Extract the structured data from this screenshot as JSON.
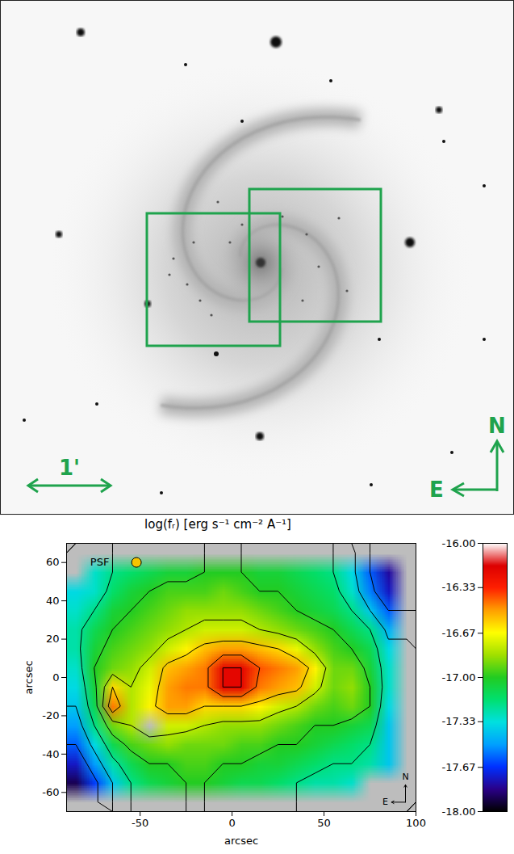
{
  "chart_data": [
    {
      "type": "image",
      "scale_bar_label": "1'",
      "compass": {
        "north": "N",
        "east": "E"
      }
    },
    {
      "type": "heatmap",
      "title": "log(fᵣ) [erg s⁻¹ cm⁻² A⁻¹]",
      "x_label": "arcsec",
      "y_label": "arcsec",
      "xlim": [
        -90,
        100
      ],
      "ylim": [
        -70,
        70
      ],
      "xticks": [
        -50,
        0,
        50,
        100
      ],
      "yticks": [
        -60,
        -40,
        -20,
        0,
        20,
        40,
        60
      ],
      "psf_label": "PSF",
      "compass": {
        "north": "N",
        "east": "E"
      },
      "cells": {
        "x": [
          -85,
          -75,
          -65,
          -55,
          -45,
          -35,
          -25,
          -15,
          -5,
          5,
          15,
          25,
          35,
          45,
          55,
          65,
          75,
          85,
          95
        ],
        "y": [
          65,
          55,
          45,
          35,
          25,
          15,
          5,
          -5,
          -15,
          -25,
          -35,
          -45,
          -55,
          -65
        ],
        "values": [
          [
            null,
            null,
            null,
            null,
            null,
            null,
            null,
            null,
            null,
            null,
            null,
            null,
            null,
            null,
            null,
            null,
            null,
            null,
            null
          ],
          [
            null,
            -17.3,
            -17.2,
            -17.15,
            -17.1,
            -17.05,
            -17.05,
            -17.0,
            -17.0,
            -17.0,
            -17.05,
            -17.05,
            -17.1,
            -17.15,
            -17.2,
            -17.35,
            -17.6,
            -17.8,
            null
          ],
          [
            -17.35,
            -17.3,
            -17.15,
            -17.05,
            -17.0,
            -16.95,
            -16.95,
            -16.95,
            -16.9,
            -16.95,
            -17.0,
            -17.0,
            -17.05,
            -17.1,
            -17.15,
            -17.3,
            -17.55,
            -17.75,
            null
          ],
          [
            -17.3,
            -17.2,
            -17.05,
            -17.0,
            -16.95,
            -16.9,
            -16.85,
            -16.85,
            -16.85,
            -16.85,
            -16.9,
            -16.95,
            -17.0,
            -17.05,
            -17.1,
            -17.2,
            -17.4,
            -17.6,
            null
          ],
          [
            -17.25,
            -17.1,
            -17.0,
            -16.95,
            -16.9,
            -16.85,
            -16.8,
            -16.75,
            -16.75,
            -16.75,
            -16.8,
            -16.85,
            -16.9,
            -16.95,
            -17.0,
            -17.1,
            -17.2,
            -17.45,
            null
          ],
          [
            -17.25,
            -17.05,
            -16.95,
            -16.9,
            -16.85,
            -16.75,
            -16.65,
            -16.55,
            -16.5,
            -16.5,
            -16.55,
            -16.6,
            -16.7,
            -16.85,
            -16.95,
            -17.0,
            -17.1,
            -17.35,
            null
          ],
          [
            -17.3,
            -17.0,
            -16.9,
            -16.85,
            -16.75,
            -16.55,
            -16.5,
            -16.45,
            -16.2,
            -16.2,
            -16.4,
            -16.45,
            -16.5,
            -16.65,
            -16.9,
            -16.9,
            -17.05,
            -17.3,
            null
          ],
          [
            -17.35,
            -17.05,
            -16.6,
            -16.8,
            -16.7,
            -16.5,
            -16.45,
            -16.45,
            -16.2,
            -16.2,
            -16.45,
            -16.5,
            -16.55,
            -16.75,
            -16.9,
            -16.85,
            -17.0,
            -17.3,
            null
          ],
          [
            -17.4,
            -17.1,
            -16.45,
            -16.8,
            -16.65,
            -16.5,
            -16.5,
            -16.6,
            -16.6,
            -16.6,
            -16.65,
            -16.75,
            -16.8,
            -16.9,
            -16.95,
            -16.9,
            -17.0,
            -17.35,
            null
          ],
          [
            -17.5,
            -17.2,
            -16.9,
            -16.8,
            null,
            -16.75,
            -16.75,
            -16.8,
            -16.85,
            -16.85,
            -16.85,
            -16.9,
            -16.95,
            -17.0,
            -17.0,
            -17.05,
            -17.1,
            -17.4,
            null
          ],
          [
            -17.6,
            -17.35,
            -17.1,
            -16.95,
            -16.9,
            -16.85,
            -16.9,
            -16.9,
            -16.9,
            -16.95,
            -16.95,
            -17.0,
            -17.0,
            -17.05,
            -17.1,
            -17.15,
            -17.2,
            -17.4,
            null
          ],
          [
            -17.75,
            -17.5,
            -17.25,
            -17.1,
            -17.0,
            -17.0,
            -16.95,
            -16.95,
            -17.0,
            -17.0,
            -17.05,
            -17.05,
            -17.1,
            -17.15,
            -17.2,
            -17.2,
            -17.25,
            -17.4,
            null
          ],
          [
            -17.9,
            -17.65,
            -17.4,
            -17.2,
            -17.1,
            -17.05,
            -17.0,
            -17.0,
            -17.05,
            -17.1,
            -17.1,
            -17.15,
            -17.2,
            -17.25,
            -17.25,
            -17.3,
            null,
            null,
            null
          ],
          [
            null,
            null,
            null,
            null,
            null,
            null,
            null,
            null,
            null,
            null,
            null,
            null,
            null,
            null,
            null,
            null,
            null,
            null,
            null
          ]
        ]
      },
      "contour_levels": [
        -17.6,
        -17.4,
        -17.2,
        -17.0,
        -16.8,
        -16.6,
        -16.4,
        -16.2
      ],
      "colorbar": {
        "range": [
          -18,
          -16
        ],
        "ticks": [
          {
            "value": -16,
            "label": "-16.00"
          },
          {
            "value": -16.33,
            "label": "-16.33"
          },
          {
            "value": -16.67,
            "label": "-16.67"
          },
          {
            "value": -17,
            "label": "-17.00"
          },
          {
            "value": -17.33,
            "label": "-17.33"
          },
          {
            "value": -17.67,
            "label": "-17.67"
          },
          {
            "value": -18,
            "label": "-18.00"
          }
        ],
        "colors": [
          "#000000",
          "#2a0088",
          "#0030ff",
          "#00a0ff",
          "#00e0e0",
          "#00e070",
          "#22cc22",
          "#a0e000",
          "#ffff00",
          "#ffa000",
          "#ff2000",
          "#dd0000",
          "#ffffff"
        ]
      }
    }
  ]
}
